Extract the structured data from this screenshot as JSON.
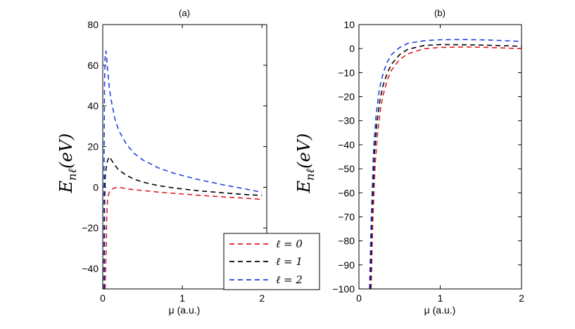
{
  "chart_data": [
    {
      "type": "line",
      "title": "(a)",
      "xlabel": "μ (a.u.)",
      "ylabel": "E",
      "ylabel_sub": "nℓ",
      "ylabel_rest": "(eV)",
      "xlim": [
        0,
        2.06
      ],
      "ylim": [
        -50,
        80
      ],
      "xticks": [
        0,
        1,
        2
      ],
      "xtick_labels": [
        "0",
        "1",
        "2"
      ],
      "yticks": [
        -40,
        -20,
        0,
        20,
        40,
        60,
        80
      ],
      "ytick_labels": [
        "−40",
        "−20",
        "0",
        "20",
        "40",
        "60",
        "80"
      ],
      "grid": false,
      "legend": {
        "placement": "bottom-right",
        "entries": [
          {
            "label": "ℓ = 0",
            "color": "#e31a1c"
          },
          {
            "label": "ℓ = 1",
            "color": "#000000"
          },
          {
            "label": "ℓ = 2",
            "color": "#1f3fe0"
          }
        ]
      },
      "series": [
        {
          "name": "ℓ = 0",
          "color": "#e31a1c",
          "x": [
            0.03,
            0.04,
            0.05,
            0.06,
            0.08,
            0.1,
            0.12,
            0.15,
            0.2,
            0.25,
            0.3,
            0.4,
            0.5,
            0.7,
            0.9,
            1.2,
            1.5,
            1.8,
            2.0
          ],
          "y": [
            -50,
            -35,
            -15,
            -6,
            -2.5,
            -1.5,
            -0.8,
            -0.3,
            0,
            -0.3,
            -0.8,
            -1.2,
            -1.6,
            -2.4,
            -3,
            -3.9,
            -4.7,
            -5.4,
            -6
          ]
        },
        {
          "name": "ℓ = 1",
          "color": "#000000",
          "x": [
            0.018,
            0.022,
            0.03,
            0.05,
            0.08,
            0.1,
            0.15,
            0.2,
            0.3,
            0.4,
            0.5,
            0.7,
            0.9,
            1.2,
            1.5,
            1.8,
            2.0
          ],
          "y": [
            -50,
            -10,
            5,
            12,
            15,
            14,
            11,
            8.5,
            5.8,
            3.9,
            2.6,
            0.8,
            -0.4,
            -1.7,
            -2.7,
            -3.6,
            -4
          ]
        },
        {
          "name": "ℓ = 2",
          "color": "#1f3fe0",
          "x": [
            0.012,
            0.016,
            0.022,
            0.03,
            0.04,
            0.05,
            0.06,
            0.08,
            0.1,
            0.15,
            0.2,
            0.3,
            0.4,
            0.5,
            0.7,
            0.9,
            1.2,
            1.5,
            1.8,
            2.0
          ],
          "y": [
            -50,
            10,
            50,
            65,
            67,
            63,
            58,
            50,
            44,
            34,
            28,
            21,
            16.5,
            13.5,
            9.5,
            6.8,
            3.8,
            1.3,
            -0.9,
            -2.5
          ]
        }
      ]
    },
    {
      "type": "line",
      "title": "(b)",
      "xlabel": "μ (a.u.)",
      "ylabel": "E",
      "ylabel_sub": "nℓ",
      "ylabel_rest": "(eV)",
      "xlim": [
        0,
        2
      ],
      "ylim": [
        -100,
        10
      ],
      "xticks": [
        0,
        1,
        2
      ],
      "xtick_labels": [
        "0",
        "1",
        "2"
      ],
      "yticks": [
        -100,
        -90,
        -80,
        -70,
        -60,
        -50,
        -40,
        -30,
        -20,
        -10,
        0,
        10
      ],
      "ytick_labels": [
        "−100",
        "−90",
        "−80",
        "−70",
        "−60",
        "−50",
        "−40",
        "−30",
        "−20",
        "−10",
        "0",
        "10"
      ],
      "grid": false,
      "series": [
        {
          "name": "ℓ = 0",
          "color": "#e31a1c",
          "x": [
            0.15,
            0.17,
            0.2,
            0.23,
            0.27,
            0.3,
            0.35,
            0.4,
            0.5,
            0.6,
            0.8,
            1.0,
            1.3,
            1.6,
            2.0
          ],
          "y": [
            -100,
            -72,
            -48,
            -35,
            -24,
            -19,
            -13,
            -9,
            -4.5,
            -2.2,
            0,
            0.5,
            0.7,
            0.5,
            0
          ]
        },
        {
          "name": "ℓ = 1",
          "color": "#000000",
          "x": [
            0.14,
            0.16,
            0.19,
            0.22,
            0.26,
            0.3,
            0.35,
            0.4,
            0.5,
            0.6,
            0.8,
            1.0,
            1.3,
            1.6,
            2.0
          ],
          "y": [
            -100,
            -70,
            -44,
            -31,
            -21,
            -15,
            -10,
            -6.5,
            -2.5,
            -0.3,
            1.3,
            1.7,
            1.6,
            1.4,
            1.0
          ]
        },
        {
          "name": "ℓ = 2",
          "color": "#1f3fe0",
          "x": [
            0.13,
            0.15,
            0.18,
            0.21,
            0.25,
            0.3,
            0.35,
            0.4,
            0.5,
            0.6,
            0.8,
            1.0,
            1.3,
            1.6,
            2.0
          ],
          "y": [
            -100,
            -72,
            -42,
            -28,
            -17,
            -10,
            -5.5,
            -2.5,
            0.5,
            2.2,
            3.3,
            3.7,
            3.8,
            3.6,
            3.0
          ]
        }
      ]
    }
  ]
}
